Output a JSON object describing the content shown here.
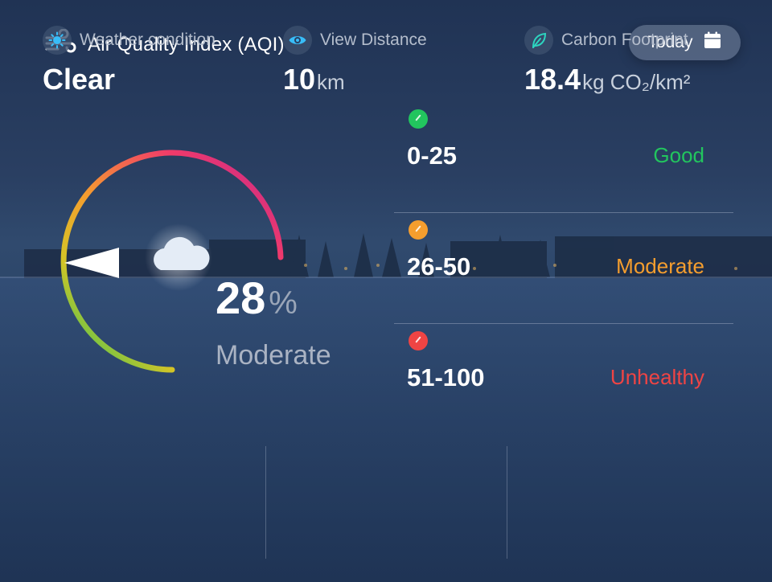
{
  "header": {
    "title": "Air Quality Index (AQI)",
    "icon": "wind-icon"
  },
  "date_filter": {
    "label": "Today",
    "icon": "calendar-icon"
  },
  "gauge": {
    "value": "28",
    "unit": "%",
    "status": "Moderate",
    "fraction": 0.28
  },
  "levels": [
    {
      "range": "0-25",
      "status": "Good",
      "color": "#22c55e"
    },
    {
      "range": "26-50",
      "status": "Moderate",
      "color": "#f59e2e"
    },
    {
      "range": "51-100",
      "status": "Unhealthy",
      "color": "#ef4444"
    }
  ],
  "stats": [
    {
      "label": "Weather condition",
      "value": "Clear",
      "unit": "",
      "icon": "sun-icon"
    },
    {
      "label": "View Distance",
      "value": "10",
      "unit": "km",
      "icon": "eye-icon"
    },
    {
      "label": "Carbon Footprint",
      "value": "18.4",
      "unit": "kg CO₂/km²",
      "icon": "leaf-icon"
    }
  ]
}
